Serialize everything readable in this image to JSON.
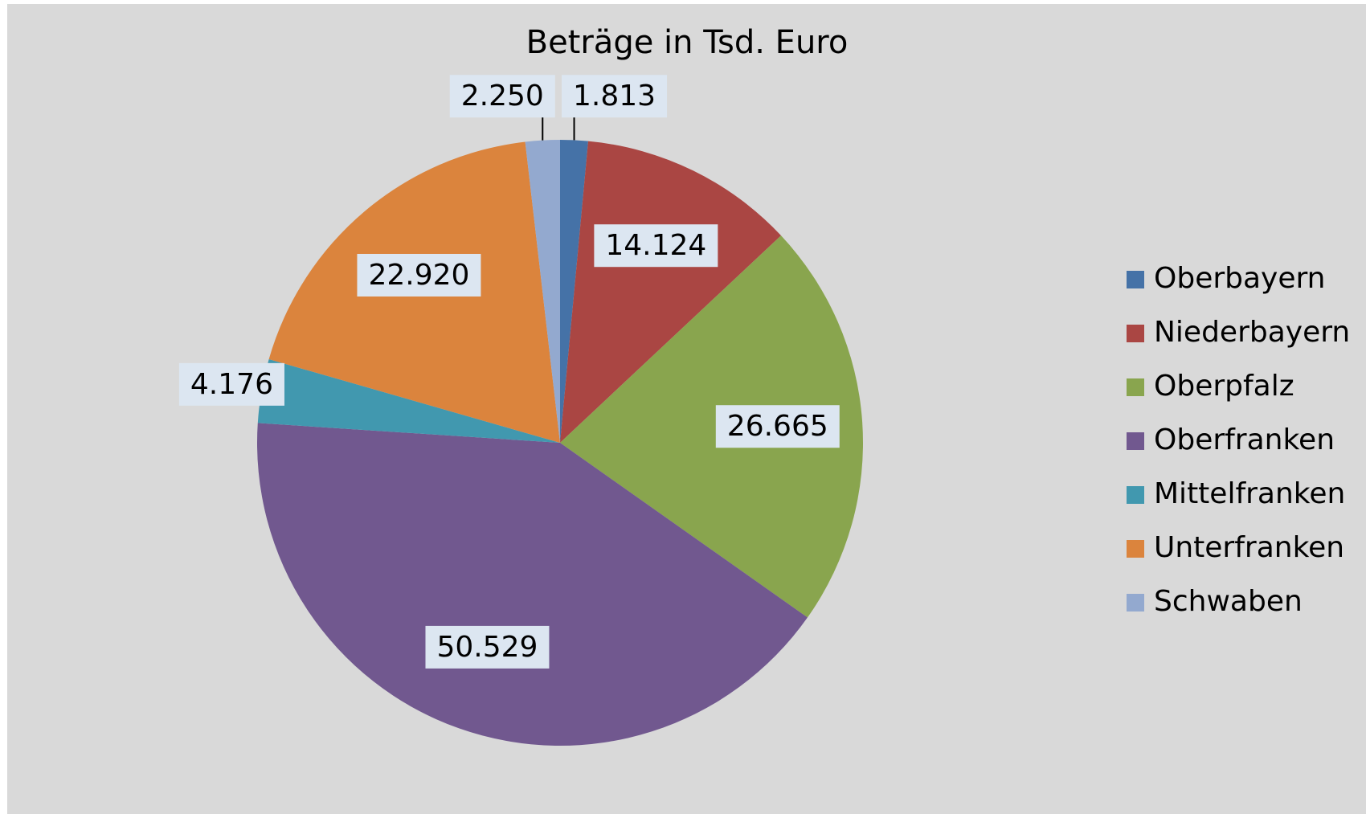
{
  "chart_data": {
    "type": "pie",
    "title": "Beträge in Tsd. Euro",
    "categories": [
      "Oberbayern",
      "Niederbayern",
      "Oberpfalz",
      "Oberfranken",
      "Mittelfranken",
      "Unterfranken",
      "Schwaben"
    ],
    "values": [
      1813,
      14124,
      26665,
      50529,
      4176,
      22920,
      2250
    ],
    "value_labels": [
      "1.813",
      "14.124",
      "26.665",
      "50.529",
      "4.176",
      "22.920",
      "2.250"
    ],
    "colors": [
      "#4572a7",
      "#aa4643",
      "#89a54e",
      "#71588f",
      "#4198af",
      "#db843d",
      "#93a9cf"
    ],
    "legend": "right"
  }
}
